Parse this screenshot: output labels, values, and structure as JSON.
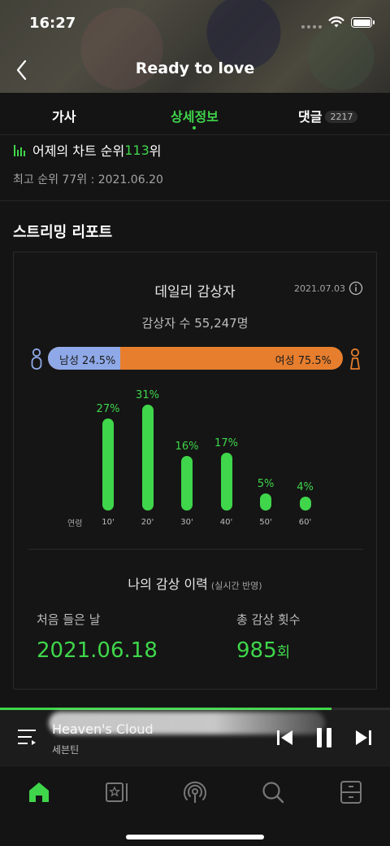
{
  "status_bar": {
    "time": "16:27"
  },
  "header": {
    "title": "Ready to love"
  },
  "tabs": [
    {
      "label": "가사",
      "active": false
    },
    {
      "label": "상세정보",
      "active": true
    },
    {
      "label": "댓글",
      "badge": "2217",
      "active": false
    }
  ],
  "chart_rank": {
    "prefix": "어제의 차트 순위 ",
    "rank": "113",
    "suffix": "위",
    "best": "최고 순위 77위 : 2021.06.20"
  },
  "section_title": "스트리밍 리포트",
  "daily_listeners": {
    "title": "데일리 감상자",
    "date": "2021.07.03",
    "count_text": "감상자 수 55,247명",
    "male_label": "남성 24.5%",
    "female_label": "여성 75.5%",
    "male_share": 0.245,
    "male_color": "#8fa9e8",
    "female_color": "#e67e2e"
  },
  "chart_data": {
    "type": "bar",
    "xlabel": "연령",
    "categories": [
      "10'",
      "20'",
      "30'",
      "40'",
      "50'",
      "60'"
    ],
    "values": [
      27,
      31,
      16,
      17,
      5,
      4
    ],
    "value_labels": [
      "27%",
      "31%",
      "16%",
      "17%",
      "5%",
      "4%"
    ],
    "color": "#3fd64b"
  },
  "history": {
    "title": "나의 감상 이력",
    "note": "(실시간 반영)",
    "first_label": "처음 들은 날",
    "first_value": "2021.06.18",
    "count_label": "총 감상 횟수",
    "count_value": "985",
    "count_unit": "회"
  },
  "player": {
    "title": "Heaven's Cloud",
    "artist": "세븐틴",
    "progress": 0.85
  },
  "nav": {
    "items": [
      "home-icon",
      "library-icon",
      "podcast-icon",
      "search-icon",
      "storage-icon"
    ],
    "active": "home-icon"
  },
  "colors": {
    "accent": "#3fd64b",
    "background": "#141414"
  }
}
